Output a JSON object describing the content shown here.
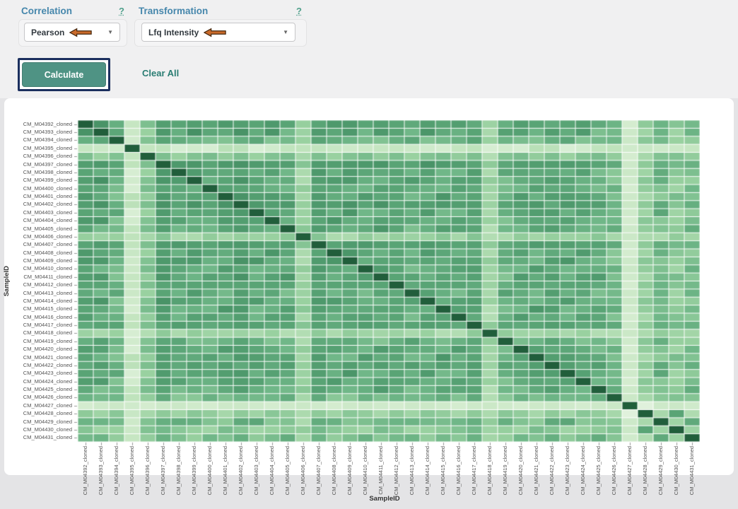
{
  "header": {
    "correlation": {
      "label": "Correlation",
      "help": "?",
      "value": "Pearson"
    },
    "transformation": {
      "label": "Transformation",
      "help": "?",
      "value": "Lfq Intensity"
    },
    "calculate_label": "Calculate",
    "clear_all_label": "Clear All"
  },
  "annotations": {
    "arrow_fill": "#c96a2b",
    "arrow_outline": "#46280f",
    "highlight_box_color": "#1b2f5e"
  },
  "colors": {
    "header_bg": "#f0f0f1",
    "page_bg": "#e4e4e6",
    "card_bg": "#ffffff",
    "label_blue": "#4687ac",
    "help_teal": "#4fa08b",
    "button_teal": "#4f9384",
    "clear_all_teal": "#2a7d73",
    "tick_text": "#555555"
  },
  "chart_data": {
    "type": "heatmap",
    "xlabel": "SampleID",
    "ylabel": "SampleID",
    "colormap": "Greens",
    "samples": [
      "CM_M04392_cloned",
      "CM_M04393_cloned",
      "CM_M04394_cloned",
      "CM_M04395_cloned",
      "CM_M04396_cloned",
      "CM_M04397_cloned",
      "CM_M04398_cloned",
      "CM_M04399_cloned",
      "CM_M04400_cloned",
      "CM_M04401_cloned",
      "CM_M04402_cloned",
      "CM_M04403_cloned",
      "CM_M04404_cloned",
      "CM_M04405_cloned",
      "CM_M04406_cloned",
      "CM_M04407_cloned",
      "CM_M04408_cloned",
      "CM_M04409_cloned",
      "CM_M04410_cloned",
      "CM_M04411_cloned",
      "CM_M04412_cloned",
      "CM_M04413_cloned",
      "CM_M04414_cloned",
      "CM_M04415_cloned",
      "CM_M04416_cloned",
      "CM_M04417_cloned",
      "CM_M04418_cloned",
      "CM_M04419_cloned",
      "CM_M04420_cloned",
      "CM_M04421_cloned",
      "CM_M04422_cloned",
      "CM_M04423_cloned",
      "CM_M04424_cloned",
      "CM_M04425_cloned",
      "CM_M04426_cloned",
      "CM_M04427_cloned",
      "CM_M04428_cloned",
      "CM_M04429_cloned",
      "CM_M04430_cloned",
      "CM_M04431_cloned"
    ],
    "diagonal_value": 1.0,
    "value_range": [
      0.18,
      1.0
    ],
    "base_levels": [
      0.78,
      0.76,
      0.68,
      0.4,
      0.62,
      0.74,
      0.72,
      0.74,
      0.72,
      0.76,
      0.74,
      0.72,
      0.76,
      0.72,
      0.56,
      0.72,
      0.76,
      0.76,
      0.72,
      0.74,
      0.72,
      0.7,
      0.74,
      0.72,
      0.74,
      0.7,
      0.54,
      0.68,
      0.74,
      0.72,
      0.7,
      0.72,
      0.74,
      0.7,
      0.66,
      0.34,
      0.58,
      0.66,
      0.6,
      0.64
    ],
    "jitter": [
      0.02,
      -0.03,
      0.05,
      0.0,
      -0.05,
      0.04,
      -0.02,
      0.07,
      0.01,
      -0.04,
      0.06,
      -0.01,
      0.03,
      -0.06,
      0.0,
      0.05,
      -0.03,
      0.02,
      -0.05,
      0.04
    ],
    "pair_overrides": [
      [
        0,
        1,
        0.8
      ],
      [
        35,
        36,
        0.3
      ],
      [
        36,
        37,
        0.52
      ],
      [
        36,
        38,
        0.74
      ],
      [
        36,
        39,
        0.5
      ],
      [
        37,
        38,
        0.55
      ],
      [
        37,
        39,
        0.72
      ],
      [
        38,
        39,
        0.56
      ]
    ],
    "colorscale": [
      {
        "value": 0.18,
        "color": "#f4faf2"
      },
      {
        "value": 0.32,
        "color": "#ddf0d8"
      },
      {
        "value": 0.45,
        "color": "#bfe3bc"
      },
      {
        "value": 0.58,
        "color": "#96cf9e"
      },
      {
        "value": 0.68,
        "color": "#6cb485"
      },
      {
        "value": 0.76,
        "color": "#539e70"
      },
      {
        "value": 0.85,
        "color": "#3c865c"
      },
      {
        "value": 0.93,
        "color": "#2a6e49"
      },
      {
        "value": 1.0,
        "color": "#215e3b"
      }
    ]
  }
}
